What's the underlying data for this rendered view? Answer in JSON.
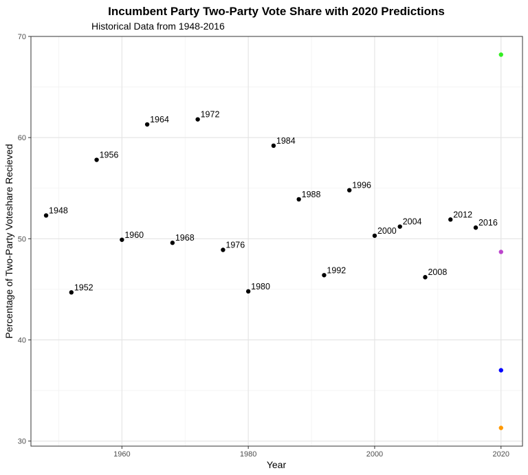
{
  "chart_data": {
    "type": "scatter",
    "title": "Incumbent Party Two-Party Vote Share with 2020 Predictions",
    "subtitle": "Historical Data from 1948-2016",
    "xlabel": "Year",
    "ylabel": "Percentage of Two-Party Voteshare Recieved",
    "xlim": [
      1945.6,
      2023.4
    ],
    "ylim": [
      29.5,
      70.0
    ],
    "x_ticks": [
      1960,
      1980,
      2000,
      2020
    ],
    "y_ticks": [
      30,
      40,
      50,
      60,
      70
    ],
    "grid": true,
    "legend": "none",
    "series": [
      {
        "color": "#000000",
        "points": [
          {
            "x": 1948,
            "y": 52.3,
            "label": "1948"
          },
          {
            "x": 1952,
            "y": 44.7,
            "label": "1952"
          },
          {
            "x": 1956,
            "y": 57.8,
            "label": "1956"
          },
          {
            "x": 1960,
            "y": 49.9,
            "label": "1960"
          },
          {
            "x": 1964,
            "y": 61.3,
            "label": "1964"
          },
          {
            "x": 1968,
            "y": 49.6,
            "label": "1968"
          },
          {
            "x": 1972,
            "y": 61.8,
            "label": "1972"
          },
          {
            "x": 1976,
            "y": 48.9,
            "label": "1976"
          },
          {
            "x": 1980,
            "y": 44.8,
            "label": "1980"
          },
          {
            "x": 1984,
            "y": 59.2,
            "label": "1984"
          },
          {
            "x": 1988,
            "y": 53.9,
            "label": "1988"
          },
          {
            "x": 1992,
            "y": 46.4,
            "label": "1992"
          },
          {
            "x": 1996,
            "y": 54.8,
            "label": "1996"
          },
          {
            "x": 2000,
            "y": 50.3,
            "label": "2000"
          },
          {
            "x": 2004,
            "y": 51.2,
            "label": "2004"
          },
          {
            "x": 2008,
            "y": 46.2,
            "label": "2008"
          },
          {
            "x": 2012,
            "y": 51.9,
            "label": "2012"
          },
          {
            "x": 2016,
            "y": 51.1,
            "label": "2016"
          }
        ]
      },
      {
        "color": "#33ee22",
        "points": [
          {
            "x": 2020,
            "y": 68.2
          }
        ]
      },
      {
        "color": "#bb44cc",
        "points": [
          {
            "x": 2020,
            "y": 48.7
          }
        ]
      },
      {
        "color": "#0000ff",
        "points": [
          {
            "x": 2020,
            "y": 37.0
          }
        ]
      },
      {
        "color": "#ff9900",
        "points": [
          {
            "x": 2020,
            "y": 31.3
          }
        ]
      }
    ]
  }
}
